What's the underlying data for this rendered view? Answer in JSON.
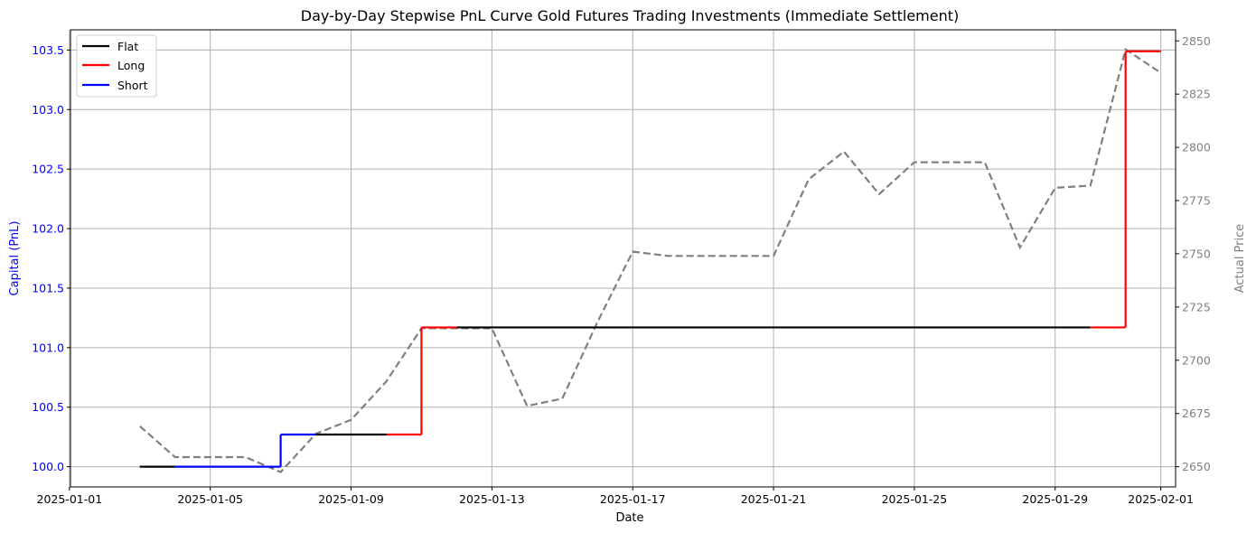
{
  "chart_data": {
    "type": "line",
    "title": "Day-by-Day Stepwise PnL Curve Gold Futures Trading Investments (Immediate Settlement)",
    "xlabel": "Date",
    "ylabel_left": "Capital (PnL)",
    "ylabel_right": "Actual Price",
    "grid": true,
    "legend_position": "top-left",
    "x_tick_labels": [
      "2025-01-01",
      "2025-01-05",
      "2025-01-09",
      "2025-01-13",
      "2025-01-17",
      "2025-01-21",
      "2025-01-25",
      "2025-01-29",
      "2025-02-01"
    ],
    "x_tick_days": [
      0,
      4,
      8,
      12,
      16,
      20,
      24,
      28,
      31
    ],
    "x_range_days": [
      0.03,
      31.42
    ],
    "y_left_ticks": [
      "100.0",
      "100.5",
      "101.0",
      "101.5",
      "102.0",
      "102.5",
      "103.0",
      "103.5"
    ],
    "y_left_range": [
      99.83,
      103.67
    ],
    "y_right_ticks": [
      "2650",
      "2675",
      "2700",
      "2725",
      "2750",
      "2775",
      "2800",
      "2825",
      "2850"
    ],
    "y_right_range": [
      2640.5,
      2855.2
    ],
    "left_label_color": "#0000ff",
    "right_label_color": "#808080",
    "legend": [
      {
        "name": "Flat",
        "color": "#000000"
      },
      {
        "name": "Long",
        "color": "#ff0000"
      },
      {
        "name": "Short",
        "color": "#0000ff"
      }
    ],
    "capital_segments": [
      {
        "from": 2,
        "to": 3,
        "y0": 100.0,
        "y1": 100.0,
        "pos": "Flat"
      },
      {
        "from": 3,
        "to": 6,
        "y0": 100.0,
        "y1": 100.0,
        "pos": "Short"
      },
      {
        "from": 6,
        "to": 6,
        "y0": 100.0,
        "y1": 100.27,
        "pos": "Short"
      },
      {
        "from": 6,
        "to": 7,
        "y0": 100.27,
        "y1": 100.27,
        "pos": "Short"
      },
      {
        "from": 7,
        "to": 9,
        "y0": 100.27,
        "y1": 100.27,
        "pos": "Flat"
      },
      {
        "from": 9,
        "to": 10,
        "y0": 100.27,
        "y1": 100.27,
        "pos": "Long"
      },
      {
        "from": 10,
        "to": 10,
        "y0": 100.27,
        "y1": 101.17,
        "pos": "Long"
      },
      {
        "from": 10,
        "to": 11,
        "y0": 101.17,
        "y1": 101.17,
        "pos": "Long"
      },
      {
        "from": 11,
        "to": 29,
        "y0": 101.17,
        "y1": 101.17,
        "pos": "Flat"
      },
      {
        "from": 29,
        "to": 30,
        "y0": 101.17,
        "y1": 101.17,
        "pos": "Long"
      },
      {
        "from": 30,
        "to": 30,
        "y0": 101.17,
        "y1": 103.49,
        "pos": "Long"
      },
      {
        "from": 30,
        "to": 31,
        "y0": 103.49,
        "y1": 103.49,
        "pos": "Long"
      }
    ],
    "price_series": {
      "name": "Actual Price",
      "color": "#808080",
      "x_days": [
        2,
        3,
        4,
        5,
        6,
        7,
        8,
        9,
        10,
        11,
        12,
        13,
        14,
        15,
        16,
        17,
        18,
        19,
        20,
        21,
        22,
        23,
        24,
        25,
        26,
        27,
        28,
        29,
        30,
        31
      ],
      "values": [
        2669,
        2654.5,
        2654.5,
        2654.5,
        2647.5,
        2665.5,
        2672,
        2690,
        2715,
        2715,
        2715,
        2678.5,
        2682,
        2718,
        2751,
        2749,
        2749,
        2749,
        2749,
        2785,
        2798,
        2778,
        2793,
        2793,
        2793,
        2753,
        2781,
        2782,
        2846,
        2835
      ]
    }
  }
}
